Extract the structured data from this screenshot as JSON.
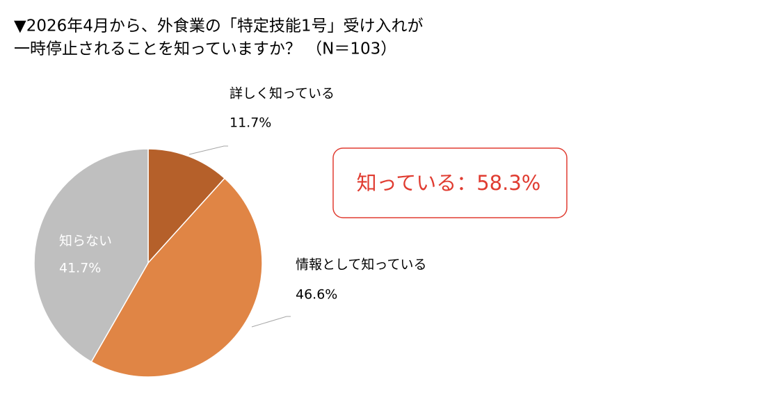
{
  "chart_data": {
    "type": "pie",
    "title": [
      "▼2026年4月から、外食業の「特定技能1号」受け入れが",
      "一時停止されることを知っていますか？ （N＝103）"
    ],
    "categories": [
      "詳しく知っている",
      "情報として知っている",
      "知らない"
    ],
    "values": [
      11.7,
      46.6,
      41.7
    ],
    "value_labels": [
      "11.7%",
      "46.6%",
      "41.7%"
    ],
    "colors": [
      "#b5602a",
      "#e08545",
      "#bfbfbf"
    ],
    "annotation": "知っている：58.3%"
  }
}
